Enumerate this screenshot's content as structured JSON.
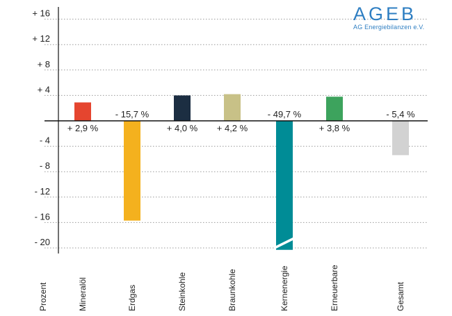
{
  "logo": {
    "name": "AGEB",
    "subtitle": "AG Energiebilanzen e.V."
  },
  "chart_data": {
    "type": "bar",
    "ylabel": "Prozent",
    "ylim": [
      -21,
      17
    ],
    "yticks": [
      16,
      12,
      8,
      4,
      0,
      -4,
      -8,
      -12,
      -16,
      -20
    ],
    "ytick_labels": [
      "+ 16",
      "+ 12",
      "+ 8",
      "+ 4",
      "",
      "- 4",
      "- 8",
      "- 12",
      "- 16",
      "- 20"
    ],
    "grid": true,
    "axis_break_on": "Kernenergie",
    "categories": [
      "Mineralöl",
      "Erdgas",
      "Steinkohle",
      "Braunkohle",
      "Kernenergie",
      "Erneuerbare",
      "Gesamt"
    ],
    "values": [
      2.9,
      -15.7,
      4.0,
      4.2,
      -49.7,
      3.8,
      -5.4
    ],
    "value_labels": [
      "+ 2,9 %",
      "- 15,7 %",
      "+ 4,0 %",
      "+ 4,2 %",
      "- 49,7 %",
      "+ 3,8 %",
      "- 5,4 %"
    ],
    "colors": [
      "#e5452f",
      "#f4b11e",
      "#1c2e42",
      "#c8c187",
      "#008c96",
      "#3da35d",
      "#d2d2d2"
    ]
  }
}
